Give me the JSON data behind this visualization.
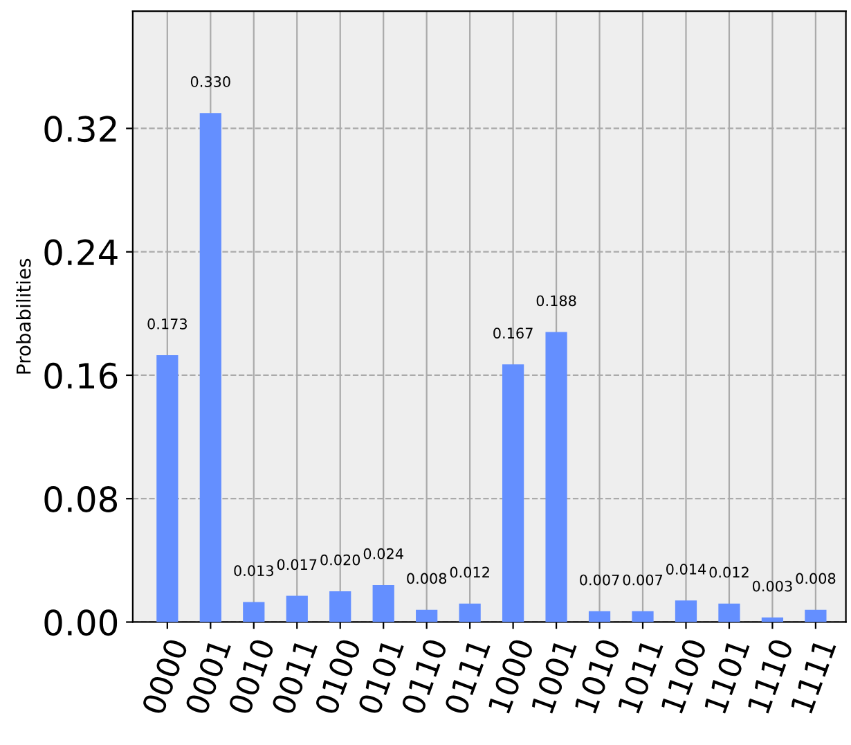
{
  "chart_data": {
    "type": "bar",
    "ylabel": "Probabilities",
    "categories": [
      "0000",
      "0001",
      "0010",
      "0011",
      "0100",
      "0101",
      "0110",
      "0111",
      "1000",
      "1001",
      "1010",
      "1011",
      "1100",
      "1101",
      "1110",
      "1111"
    ],
    "values": [
      0.173,
      0.33,
      0.013,
      0.017,
      0.02,
      0.024,
      0.008,
      0.012,
      0.167,
      0.188,
      0.007,
      0.007,
      0.014,
      0.012,
      0.003,
      0.008
    ],
    "value_labels": [
      "0.173",
      "0.330",
      "0.013",
      "0.017",
      "0.020",
      "0.024",
      "0.008",
      "0.012",
      "0.167",
      "0.188",
      "0.007",
      "0.007",
      "0.014",
      "0.012",
      "0.003",
      "0.008"
    ],
    "color": "#648fff",
    "ylim": [
      0,
      0.396
    ],
    "yticks": [
      {
        "value": 0.0,
        "label": "0.00"
      },
      {
        "value": 0.08,
        "label": "0.08"
      },
      {
        "value": 0.16,
        "label": "0.16"
      },
      {
        "value": 0.24,
        "label": "0.24"
      },
      {
        "value": 0.32,
        "label": "0.32"
      }
    ],
    "grid": true
  }
}
